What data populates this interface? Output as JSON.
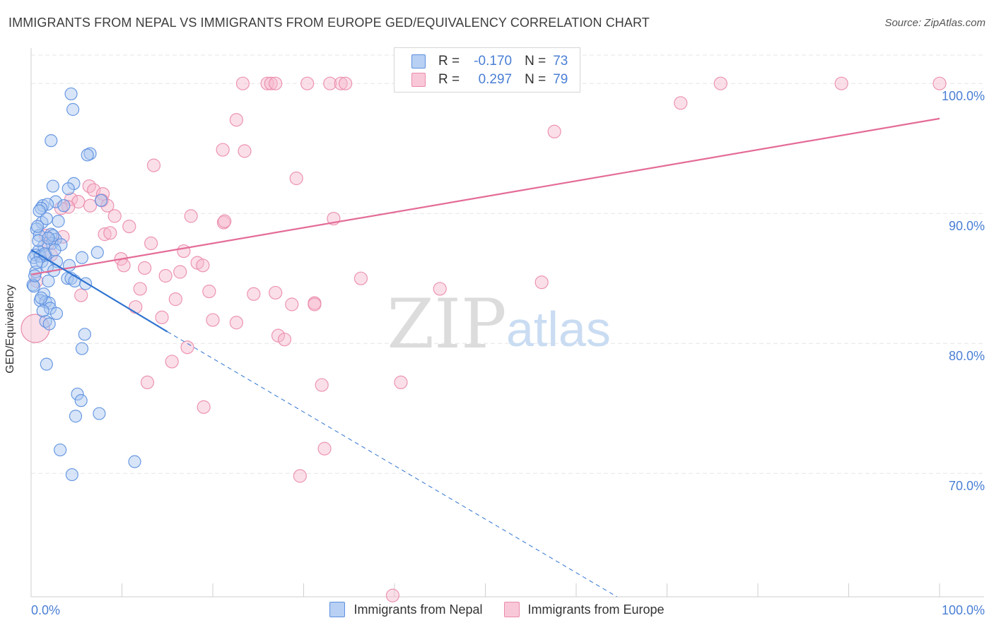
{
  "title": "IMMIGRANTS FROM NEPAL VS IMMIGRANTS FROM EUROPE GED/EQUIVALENCY CORRELATION CHART",
  "source": "Source: ZipAtlas.com",
  "watermark": {
    "zip": "ZIP",
    "atlas": "atlas"
  },
  "legend": {
    "r_label": "R =",
    "n_label": "N =",
    "rows": [
      {
        "r": "-0.170",
        "n": "73",
        "color": "#5b8fe0"
      },
      {
        "r": "0.297",
        "n": "79",
        "color": "#ee8fb0"
      }
    ]
  },
  "colors": {
    "nepal_fill": "#a9c6f0",
    "nepal_stroke": "#5b8fe0",
    "nepal_line": "#2f73d0",
    "europe_fill": "#f6b8cd",
    "europe_stroke": "#ea8aab",
    "europe_line": "#e46b97",
    "grid": "#e6e6e6",
    "tick_label": "#4a7fd4"
  },
  "chart_data": {
    "type": "scatter",
    "title": "IMMIGRANTS FROM NEPAL VS IMMIGRANTS FROM EUROPE GED/EQUIVALENCY CORRELATION CHART",
    "xlabel": "",
    "ylabel": "GED/Equivalency",
    "xlim": [
      0,
      100
    ],
    "ylim": [
      60.5,
      103
    ],
    "x_tick_labels": [
      "0.0%",
      "100.0%"
    ],
    "y_ticks": [
      70,
      80,
      90,
      100
    ],
    "y_tick_labels": [
      "70.0%",
      "80.0%",
      "90.0%",
      "100.0%"
    ],
    "series": [
      {
        "name": "Immigrants from Nepal",
        "r": -0.17,
        "n": 73,
        "trend": {
          "x0": 0,
          "y0": 87.2,
          "x_solid_end": 15,
          "y_solid_end": 80.9,
          "x_dash_end": 64.5,
          "y_dash_end": 60.5
        },
        "points": [
          [
            4.4,
            99.2
          ],
          [
            4.6,
            98.0
          ],
          [
            2.2,
            95.6
          ],
          [
            6.5,
            94.6
          ],
          [
            6.2,
            94.5
          ],
          [
            2.4,
            92.1
          ],
          [
            4.7,
            92.3
          ],
          [
            4.1,
            91.9
          ],
          [
            7.7,
            91.0
          ],
          [
            2.7,
            90.9
          ],
          [
            1.3,
            90.6
          ],
          [
            1.8,
            90.7
          ],
          [
            1.1,
            90.4
          ],
          [
            0.9,
            90.2
          ],
          [
            3.0,
            89.4
          ],
          [
            1.2,
            89.3
          ],
          [
            0.6,
            88.8
          ],
          [
            0.9,
            88.3
          ],
          [
            2.2,
            88.4
          ],
          [
            2.7,
            88.0
          ],
          [
            2.3,
            87.7
          ],
          [
            1.4,
            87.5
          ],
          [
            0.8,
            87.1
          ],
          [
            0.5,
            86.8
          ],
          [
            0.3,
            86.6
          ],
          [
            1.0,
            86.7
          ],
          [
            1.6,
            86.8
          ],
          [
            2.8,
            86.3
          ],
          [
            1.2,
            86.3
          ],
          [
            5.6,
            86.6
          ],
          [
            7.3,
            87.0
          ],
          [
            1.8,
            85.9
          ],
          [
            0.5,
            85.5
          ],
          [
            4.0,
            85.0
          ],
          [
            4.4,
            85.0
          ],
          [
            4.8,
            84.8
          ],
          [
            1.9,
            84.8
          ],
          [
            0.2,
            84.5
          ],
          [
            0.3,
            84.4
          ],
          [
            1.4,
            83.8
          ],
          [
            1.0,
            83.3
          ],
          [
            1.6,
            83.2
          ],
          [
            2.0,
            83.1
          ],
          [
            2.1,
            82.7
          ],
          [
            2.8,
            82.3
          ],
          [
            1.6,
            81.7
          ],
          [
            2.0,
            81.5
          ],
          [
            5.9,
            80.7
          ],
          [
            5.6,
            79.6
          ],
          [
            1.7,
            78.4
          ],
          [
            5.1,
            76.1
          ],
          [
            5.5,
            75.6
          ],
          [
            7.5,
            74.6
          ],
          [
            4.9,
            74.4
          ],
          [
            3.2,
            71.8
          ],
          [
            11.4,
            70.9
          ],
          [
            4.5,
            69.9
          ],
          [
            0.8,
            87.9
          ],
          [
            1.5,
            86.9
          ],
          [
            2.4,
            88.3
          ],
          [
            0.6,
            86.2
          ],
          [
            3.3,
            87.6
          ],
          [
            1.9,
            88.1
          ],
          [
            0.4,
            85.2
          ],
          [
            6.0,
            84.6
          ],
          [
            2.6,
            87.2
          ],
          [
            1.1,
            83.5
          ],
          [
            3.6,
            90.6
          ],
          [
            0.7,
            89.0
          ],
          [
            2.5,
            85.6
          ],
          [
            1.3,
            82.5
          ],
          [
            4.2,
            86.0
          ],
          [
            1.7,
            89.6
          ]
        ]
      },
      {
        "name": "Immigrants from Europe",
        "r": 0.297,
        "n": 79,
        "trend": {
          "x0": 0,
          "y0": 85.3,
          "x1": 100,
          "y1": 97.3
        },
        "points": [
          [
            23.3,
            100
          ],
          [
            26.0,
            100
          ],
          [
            26.4,
            100
          ],
          [
            26.9,
            100
          ],
          [
            30.4,
            100
          ],
          [
            32.9,
            100
          ],
          [
            34.1,
            100
          ],
          [
            34.6,
            100
          ],
          [
            47.9,
            100
          ],
          [
            48.5,
            100
          ],
          [
            75.9,
            100
          ],
          [
            89.2,
            100
          ],
          [
            100,
            100
          ],
          [
            71.5,
            98.5
          ],
          [
            22.6,
            97.2
          ],
          [
            57.6,
            96.3
          ],
          [
            21.1,
            94.9
          ],
          [
            23.5,
            94.8
          ],
          [
            13.5,
            93.7
          ],
          [
            29.2,
            92.7
          ],
          [
            6.4,
            92.1
          ],
          [
            6.9,
            91.8
          ],
          [
            7.9,
            91.5
          ],
          [
            4.4,
            91.1
          ],
          [
            7.8,
            91.0
          ],
          [
            5.2,
            90.9
          ],
          [
            8.4,
            90.6
          ],
          [
            6.5,
            90.6
          ],
          [
            4.1,
            90.5
          ],
          [
            3.3,
            90.4
          ],
          [
            9.2,
            89.8
          ],
          [
            17.6,
            89.8
          ],
          [
            21.2,
            89.3
          ],
          [
            21.3,
            89.4
          ],
          [
            33.3,
            89.6
          ],
          [
            10.8,
            89.0
          ],
          [
            8.1,
            88.4
          ],
          [
            8.7,
            88.5
          ],
          [
            3.5,
            88.2
          ],
          [
            1.6,
            88.3
          ],
          [
            1.9,
            87.7
          ],
          [
            13.2,
            87.7
          ],
          [
            16.8,
            87.1
          ],
          [
            2.2,
            86.8
          ],
          [
            9.9,
            86.5
          ],
          [
            10.2,
            86.0
          ],
          [
            12.5,
            85.8
          ],
          [
            18.3,
            86.2
          ],
          [
            18.9,
            86.0
          ],
          [
            16.4,
            85.5
          ],
          [
            14.8,
            85.2
          ],
          [
            36.3,
            85.0
          ],
          [
            56.2,
            84.7
          ],
          [
            0.6,
            84.8
          ],
          [
            12.0,
            84.2
          ],
          [
            19.6,
            84.0
          ],
          [
            24.5,
            83.8
          ],
          [
            26.9,
            83.9
          ],
          [
            45.0,
            84.2
          ],
          [
            5.5,
            83.7
          ],
          [
            15.9,
            83.4
          ],
          [
            28.7,
            83.0
          ],
          [
            31.2,
            83.1
          ],
          [
            31.2,
            83.0
          ],
          [
            11.5,
            82.8
          ],
          [
            14.4,
            82.0
          ],
          [
            20.0,
            81.8
          ],
          [
            22.6,
            81.6
          ],
          [
            27.2,
            80.6
          ],
          [
            27.9,
            80.3
          ],
          [
            17.2,
            79.7
          ],
          [
            15.5,
            78.6
          ],
          [
            12.8,
            77.0
          ],
          [
            32.0,
            76.8
          ],
          [
            40.7,
            77.0
          ],
          [
            19.0,
            75.1
          ],
          [
            32.3,
            71.9
          ],
          [
            29.6,
            69.8
          ],
          [
            39.8,
            60.6
          ]
        ]
      }
    ]
  },
  "bottom_legend": [
    {
      "label": "Immigrants from Nepal"
    },
    {
      "label": "Immigrants from Europe"
    }
  ]
}
